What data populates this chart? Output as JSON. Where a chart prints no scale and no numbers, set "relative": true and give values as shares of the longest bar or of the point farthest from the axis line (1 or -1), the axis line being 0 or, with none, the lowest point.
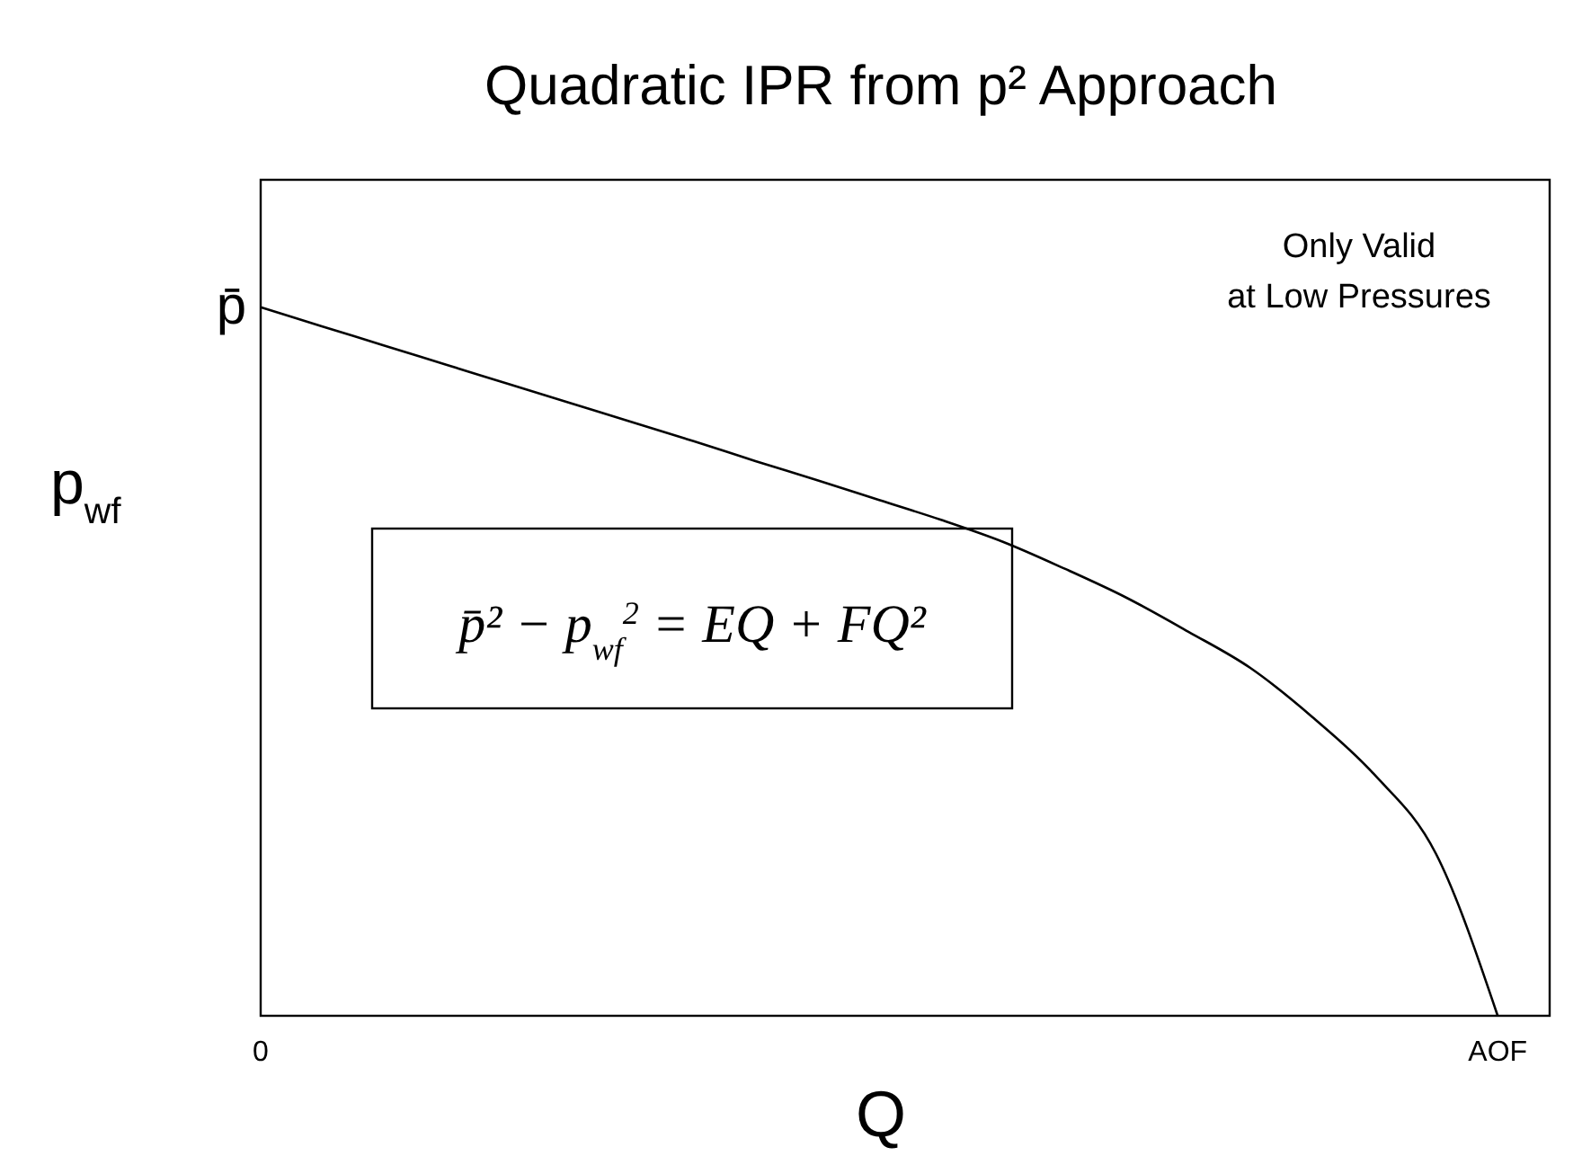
{
  "chart_data": {
    "type": "line",
    "title": "Quadratic IPR from p² Approach",
    "xlabel": "Q",
    "ylabel": "p$_{wf}$",
    "relative": true,
    "categories": [
      "0",
      null,
      null,
      null,
      null,
      null,
      null,
      null,
      null,
      null,
      null,
      null,
      null,
      null,
      null,
      null,
      null,
      null,
      null,
      null,
      "AOF"
    ],
    "series": [
      {
        "color": "#000000",
        "values": [
          1,
          0.973,
          0.946,
          0.919,
          0.892,
          0.865,
          0.838,
          0.811,
          0.783,
          0.756,
          0.728,
          0.7,
          0.669,
          0.631,
          0.59,
          0.542,
          0.491,
          0.422,
          0.341,
          0.229,
          0
        ]
      }
    ],
    "line_style": "solid",
    "annotations": [
      {
        "text": "p̄",
        "x": "0",
        "y": 1
      },
      "Only Valid\nat Low Pressures",
      "p̄² − p$_{wf}$$^{2}$ = EQ + FQ²"
    ]
  }
}
